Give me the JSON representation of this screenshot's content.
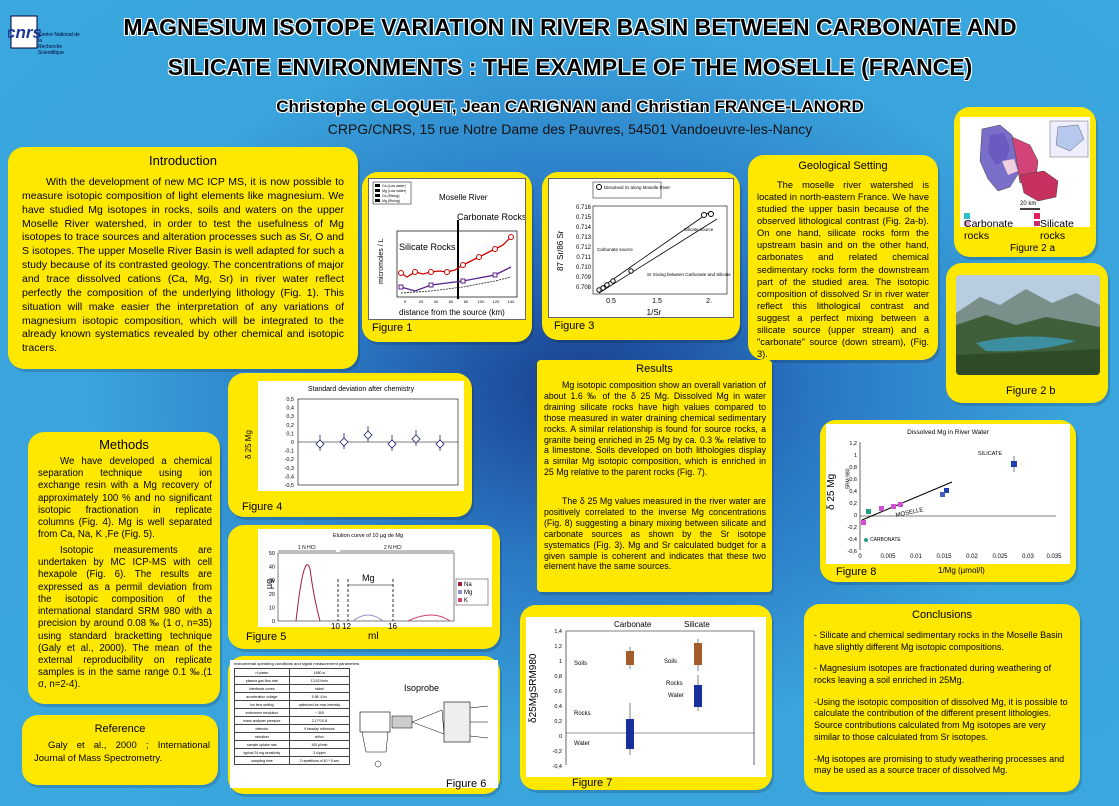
{
  "header": {
    "title_line1": "MAGNESIUM ISOTOPE VARIATION IN RIVER BASIN BETWEEN CARBONATE AND",
    "title_line2": "SILICATE ENVIRONMENTS : THE EXAMPLE OF THE MOSELLE (FRANCE)",
    "authors": "Christophe CLOQUET, Jean CARIGNAN and Christian FRANCE-LANORD",
    "affiliation": "CRPG/CNRS, 15 rue Notre Dame des Pauvres, 54501 Vandoeuvre-les-Nancy",
    "logo_line1": "Centre National de la",
    "logo_line2": "Recherche Scientifique"
  },
  "introduction": {
    "heading": "Introduction",
    "text": "With the development of new MC ICP MS, it is now possible to measure isotopic composition of light elements like magnesium. We have studied Mg isotopes in rocks, soils and waters on the upper Moselle River watershed, in order to test the usefulness of Mg isotopes to trace sources and alteration processes such as Sr, O and S isotopes. The upper Moselle River Basin is well adapted for such a study because of its contrasted geology. The concentrations of major and trace dissolved cations (Ca, Mg, Sr) in river water reflect perfectly the composition of the underlying lithology (Fig. 1). This situation will make easier the interpretation of any variations of magnesium isotopic composition, which will be integrated to the already known systematics revealed by other chemical and isotopic tracers."
  },
  "figure1": {
    "caption": "Figure 1",
    "title": "Moselle River",
    "ylabel": "micromoles / L",
    "xlabel": "distance from the source (km)",
    "silicate_label": "Silicate Rocks",
    "carbonate_label": "Carbonate Rocks",
    "legend": [
      "Ca (Low water)",
      "Mg (Low water)",
      "Ca (Rising)",
      "Mg (Rising)"
    ],
    "xticks": [
      "0",
      "20",
      "40",
      "60",
      "80",
      "100",
      "120",
      "140"
    ]
  },
  "figure3": {
    "caption": "Figure 3",
    "legend": "Dissolved Sr along Moselle River",
    "ylabel": "87 Sr/86 Sr",
    "xlabel": "1/Sr",
    "yticks": [
      "0.716",
      "0.715",
      "0.714",
      "0.713",
      "0.712",
      "0.711",
      "0.710",
      "0.709",
      "0.708"
    ],
    "xticks": [
      "0.5",
      "1.5",
      "2."
    ],
    "silicate_source": "Silicate source",
    "carbonate_source": "Carbonate source",
    "mixing": "Sr mixing between Carbonate and Silicate"
  },
  "geological": {
    "heading": "Geological Setting",
    "text": "The moselle river watershed is located in north-eastern France. We have studied the upper basin because of the observed lithological contrast (Fig. 2a-b). On one hand, silicate rocks form the upstream basin and on the other hand, carbonates and related chemical sedimentary rocks form the downstream part of the studied area. The isotopic composition of dissolved Sr in river water reflect this lithological contrast and suggest a perfect mixing between a silicate source (upper stream) and a \"carbonate\" source (down stream), (Fig. 3)."
  },
  "figure2a": {
    "caption": "Figure 2 a",
    "scale": "20 km",
    "carbonate": "Carbonate rocks",
    "silicate": "Silicate rocks"
  },
  "figure2b": {
    "caption": "Figure 2 b"
  },
  "figure4": {
    "caption": "Figure 4",
    "title": "Standard deviation after chemistry",
    "ylabel": "δ 25 Mg",
    "yticks": [
      "0,5",
      "0,4",
      "0,3",
      "0,2",
      "0,1",
      "0",
      "-0,1",
      "-0,2",
      "-0,3",
      "-0,4",
      "-0,5"
    ]
  },
  "results": {
    "heading": "Results",
    "p1": "Mg isotopic composition show an overall variation of about 1.6 ‰ of the δ 25 Mg. Dissolved Mg in water draining silicate rocks have high values compared to those measured in water draining chemical sedimentary rocks. A similar relationship is found for source rocks, a granite being enriched in 25 Mg by ca. 0.3 ‰ relative to a limestone. Soils developed on both lithologies display a similar Mg isotopic composition, which is enriched in 25 Mg relative to the parent rocks (Fig. 7).",
    "p2": "The δ 25 Mg values measured in the river water are positively correlated to the inverse Mg concentrations (Fig. 8) suggesting a binary mixing between silicate and carbonate sources as shown by the Sr isotope systematics (Fig. 3). Mg and Sr calculated budget for a given sample is coherent and indicates that these two element have the same sources."
  },
  "methods": {
    "heading": "Methods",
    "p1": "We have developed a chemical separation technique using ion exchange resin with a Mg recovery of approximately 100 % and no significant isotopic fractionation in replicate columns (Fig. 4). Mg is well separated from Ca, Na, K ,Fe (Fig. 5).",
    "p2": "Isotopic measurements are undertaken by MC ICP-MS with cell hexapole (Fig. 6). The results are expressed as a permil deviation from the isotopic composition of the international standard SRM 980 with a precision by around 0.08 ‰ (1 σ, n=35) using standard bracketting technique (Galy et al., 2000). The mean of the external reproducibility on replicate samples is in the same range 0.1 ‰.(1 σ, n=2-4)."
  },
  "figure5": {
    "caption": "Figure 5",
    "title": "Elution curve of 10 µg de Mg",
    "ylabel": "µg",
    "xlabel": "ml",
    "hcl1": "1 N HCl",
    "hcl2": "2 N HCl",
    "mg_label": "Mg",
    "yticks": [
      "50",
      "40",
      "30",
      "20",
      "10",
      "0"
    ],
    "xticks": [
      "10",
      "12",
      "16"
    ],
    "legend": [
      "Na",
      "Mg",
      "K"
    ]
  },
  "figure8": {
    "caption": "Figure 8",
    "title": "Dissolved Mg in River Water",
    "ylabel": "δ 25 Mg",
    "ylabel_sub": "SRM 980",
    "xlabel": "1/Mg (µmol/l)",
    "silicate": "SILICATE",
    "carbonate": "CARBONATE",
    "moselle": "MOSELLE",
    "yticks": [
      "1,2",
      "1",
      "0,8",
      "0,6",
      "0,4",
      "0,2",
      "0",
      "-0,2",
      "-0,4",
      "-0,6"
    ],
    "xticks": [
      "0",
      "0.005",
      "0.01",
      "0.015",
      "0.02",
      "0.025",
      "0.03",
      "0.035"
    ]
  },
  "reference": {
    "heading": "Reference",
    "text": "Galy et al., 2000 ; International Journal of Mass Spectrometry."
  },
  "figure6": {
    "caption": "Figure 6",
    "table_title": "Instrumental operating conditions and signal measurement parameters",
    "rows": [
      [
        "rf power",
        "1650 w"
      ],
      [
        "plasma gas flow rate",
        "13.52 l/min"
      ],
      [
        "interfaces cones",
        "nickel"
      ],
      [
        "acceleration voltage",
        "5.98 -6 kv"
      ],
      [
        "ion lens setting",
        "optimized for max intensity"
      ],
      [
        "instrument resolution",
        "~ 300"
      ],
      [
        "mass analyser pressure",
        "2.17*10-8"
      ],
      [
        "detector",
        "9 faraday collectors"
      ],
      [
        "nebuliser",
        "teflon"
      ],
      [
        "sample uptake rate",
        "100 µl/min"
      ],
      [
        "typical 24 mg sensitivity",
        "3 v/ppm"
      ],
      [
        "sampling time",
        "2 repetitions of 40 * 5 sec"
      ]
    ],
    "isoprobe": "Isoprobe"
  },
  "figure7": {
    "caption": "Figure 7",
    "carbonate": "Carbonate",
    "silicate": "Silicate",
    "ylabel": "δ25MgSRM980",
    "soils": "Soils",
    "rocks": "Rocks",
    "water": "Water",
    "yticks": [
      "1,4",
      "1,2",
      "1",
      "0,8",
      "0,6",
      "0,4",
      "0,2",
      "0",
      "-0,2",
      "-0,4"
    ]
  },
  "conclusions": {
    "heading": "Conclusions",
    "c1": "- Silicate and chemical sedimentary rocks in the Moselle Basin have slightly different Mg isotopic compositions.",
    "c2": "- Magnesium isotopes are fractionated during weathering of rocks leaving a soil enriched in 25Mg.",
    "c3": "-Using the isotopic composition of dissolved Mg, it is possible to calculate the contribution of the different present lithologies. Source contributions calculated from Mg isotopes are very similar to those calculated from Sr isotopes.",
    "c4": "-Mg isotopes are promising to study weathering processes and may be used as a source tracer of dissolved Mg."
  }
}
